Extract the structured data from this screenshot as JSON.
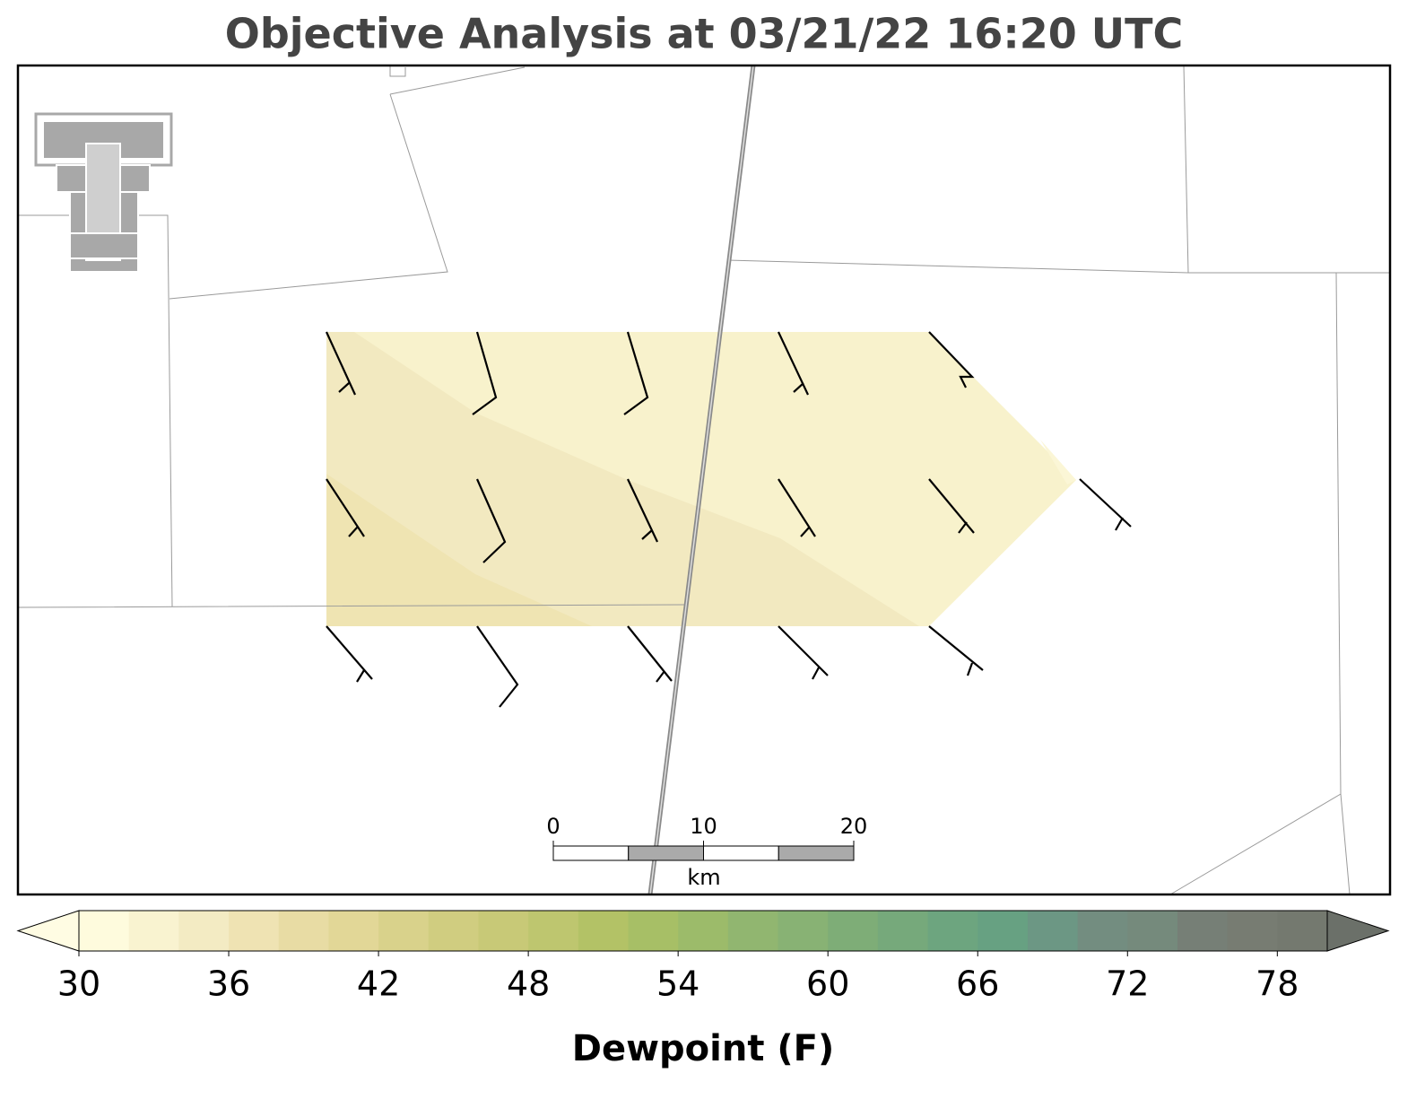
{
  "title": "Objective Analysis at 03/21/22 16:20 UTC",
  "scale_bar": {
    "xticks": [
      0,
      10,
      20
    ],
    "xlim": [
      0,
      20
    ],
    "unit": "km"
  },
  "colorbar": {
    "label": "Dewpoint (F)",
    "clim": [
      30,
      80
    ],
    "ticks": [
      30,
      36,
      42,
      48,
      54,
      60,
      66,
      72,
      78
    ],
    "colors": [
      "#fefbdd",
      "#f9f3d0",
      "#f3ebc3",
      "#efe3b3",
      "#e8dca4",
      "#e2d797",
      "#d9d28b",
      "#d0cd80",
      "#c8c977",
      "#bec66f",
      "#b3c266",
      "#a7bf66",
      "#9cbb6a",
      "#91b670",
      "#88b274",
      "#7ead77",
      "#76a97b",
      "#6da57f",
      "#67a182",
      "#6c9784",
      "#738d80",
      "#758a7c",
      "#767f76",
      "#777c72",
      "#74796f"
    ],
    "extend_colors": [
      "#fffce3",
      "#6b7069"
    ]
  }
}
